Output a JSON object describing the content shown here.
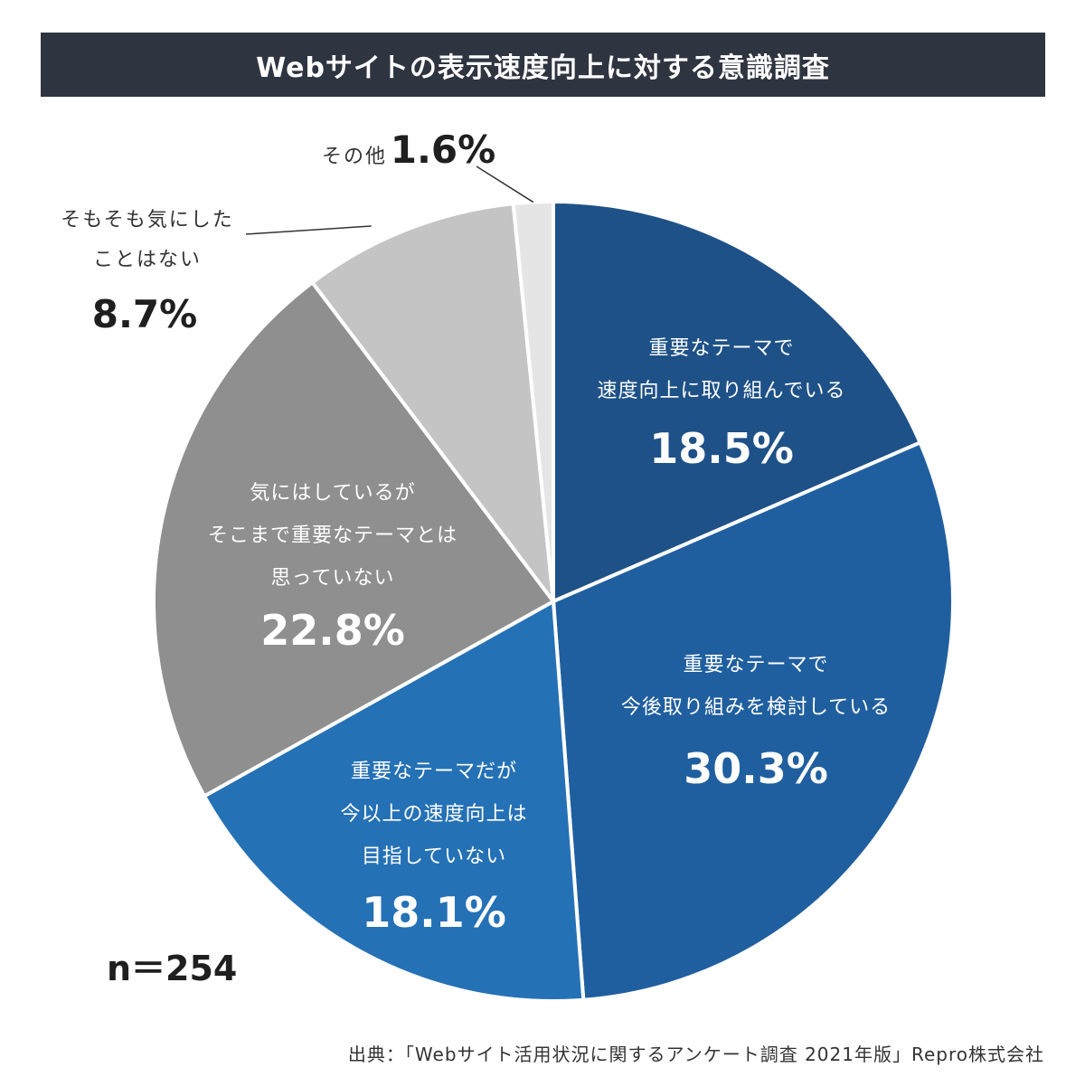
{
  "title": "Webサイトの表示速度向上に対する意識調査",
  "sample_size": "n＝254",
  "source": "出典：「Webサイト活用状況に関するアンケート調査 2021年版」Repro株式会社",
  "chart_data": {
    "type": "pie",
    "title": "Webサイトの表示速度向上に対する意識調査",
    "start": "12 o'clock",
    "direction": "clockwise",
    "slices": [
      {
        "label_lines": [
          "重要なテーマで",
          "速度向上に取り組んでいる"
        ],
        "value": 18.5,
        "value_label": "18.5%",
        "color": "#1e5187"
      },
      {
        "label_lines": [
          "重要なテーマで",
          "今後取り組みを検討している"
        ],
        "value": 30.3,
        "value_label": "30.3%",
        "color": "#205f9f"
      },
      {
        "label_lines": [
          "重要なテーマだが",
          "今以上の速度向上は",
          "目指していない"
        ],
        "value": 18.1,
        "value_label": "18.1%",
        "color": "#2571b6"
      },
      {
        "label_lines": [
          "気にはしているが",
          "そこまで重要なテーマとは",
          "思っていない"
        ],
        "value": 22.8,
        "value_label": "22.8%",
        "color": "#8f8f8f"
      },
      {
        "label_lines": [
          "そもそも気にした",
          "ことはない"
        ],
        "value": 8.7,
        "value_label": "8.7%",
        "color": "#c4c4c4"
      },
      {
        "label_lines": [
          "その他"
        ],
        "value": 1.6,
        "value_label": "1.6%",
        "color": "#e5e5e5"
      }
    ]
  }
}
